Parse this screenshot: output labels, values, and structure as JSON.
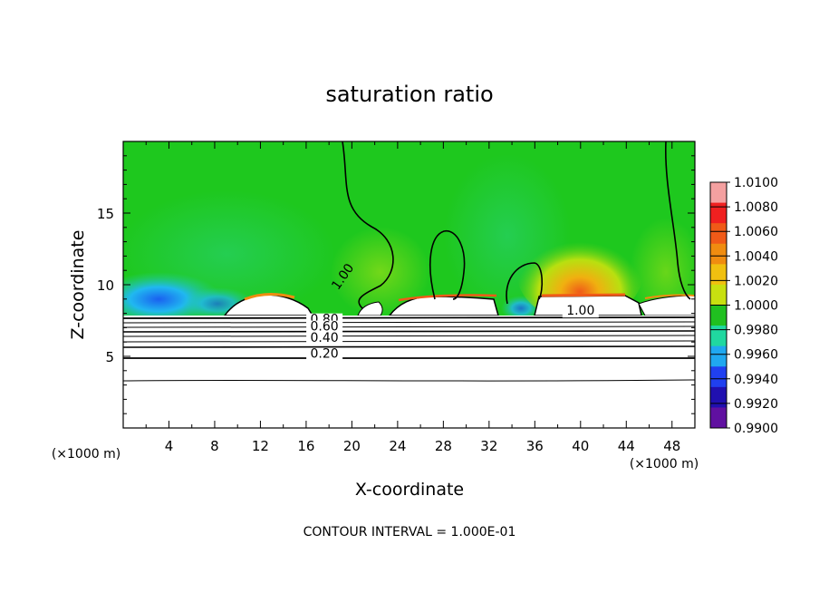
{
  "chart_data": {
    "type": "heatmap",
    "title": "saturation ratio",
    "xlabel": "X-coordinate",
    "ylabel": "Z-coordinate",
    "xunit_left": "(×1000 m)",
    "xunit_right": "(×1000 m)",
    "xlim": [
      0,
      50
    ],
    "ylim": [
      0,
      20
    ],
    "x_ticks": [
      4,
      8,
      12,
      16,
      20,
      24,
      28,
      32,
      36,
      40,
      44,
      48
    ],
    "y_ticks": [
      5,
      10,
      15
    ],
    "colorbar": {
      "levels": [
        1.01,
        1.008,
        1.006,
        1.004,
        1.002,
        1.0,
        0.998,
        0.996,
        0.994,
        0.992,
        0.99
      ],
      "labels": [
        "1.0100",
        "1.0080",
        "1.0060",
        "1.0040",
        "1.0020",
        "1.0000",
        "0.9980",
        "0.9960",
        "0.9940",
        "0.9920",
        "0.9900"
      ],
      "colors": [
        "#f4a0a0",
        "#f02020",
        "#f05a18",
        "#f08c10",
        "#f0c010",
        "#c8e010",
        "#20c020",
        "#20d8a0",
        "#20a8f0",
        "#2040f0",
        "#2010b0",
        "#6010a0"
      ]
    },
    "contour_labels": [
      {
        "text": "1.00",
        "x": 19.5,
        "z": 10.4
      },
      {
        "text": "1.00",
        "x": 40.0,
        "z": 7.9
      },
      {
        "text": "0.80",
        "x": 17.6,
        "z": 7.3
      },
      {
        "text": "0.60",
        "x": 17.6,
        "z": 6.8
      },
      {
        "text": "0.40",
        "x": 17.6,
        "z": 6.0
      },
      {
        "text": "0.20",
        "x": 17.6,
        "z": 4.9
      }
    ],
    "contour_interval": "CONTOUR INTERVAL = 1.000E-01",
    "grid": false
  }
}
